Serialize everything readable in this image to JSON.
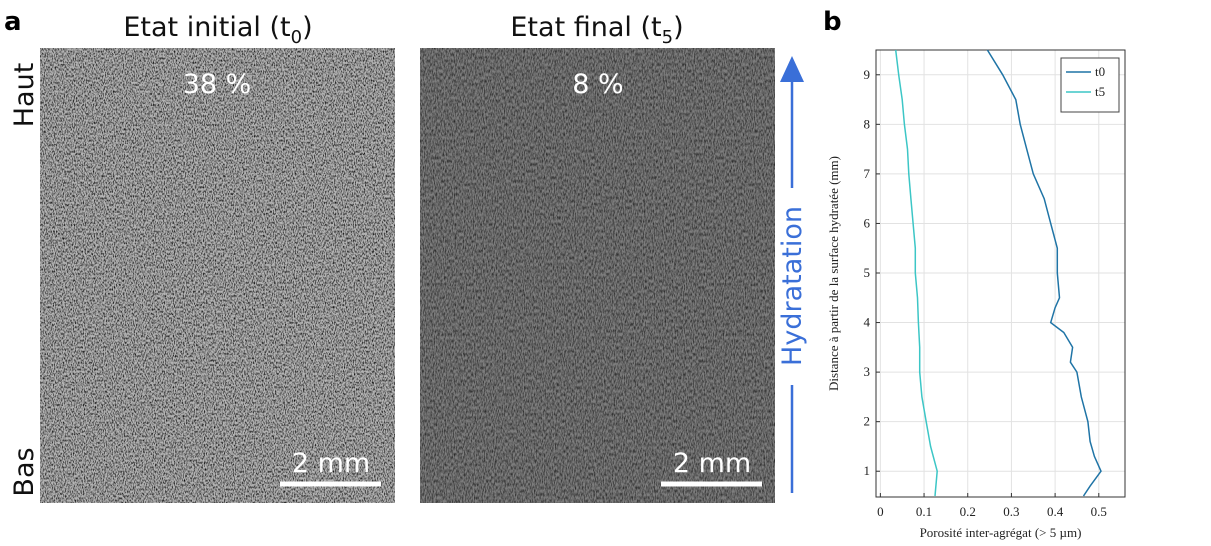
{
  "panel_a": {
    "label": "a",
    "images": [
      {
        "title": [
          "Etat initial (t",
          "0",
          ")"
        ],
        "value_label": "38 %",
        "scale": "2 mm"
      },
      {
        "title": [
          "Etat final (t",
          "5",
          ")"
        ],
        "value_label": "8 %",
        "scale": "2 mm"
      }
    ],
    "top_label": "Haut",
    "bottom_label": "Bas",
    "arrow_label": "Hydratation"
  },
  "chart_data": {
    "type": "line",
    "panel_label": "b",
    "xlabel": "Porosité inter-agrégat (> 5 µm)",
    "ylabel": "Distance à partir de la surface hydratée (mm)",
    "xlim": [
      -0.01,
      0.56
    ],
    "ylim": [
      0.48,
      9.5
    ],
    "xticks": [
      0,
      0.1,
      0.2,
      0.3,
      0.4,
      0.5
    ],
    "yticks": [
      1,
      2,
      3,
      4,
      5,
      6,
      7,
      8,
      9
    ],
    "grid": true,
    "legend": "top-right",
    "series": [
      {
        "name": "t0",
        "color": "#1f74a6",
        "x": [
          0.465,
          0.48,
          0.505,
          0.49,
          0.48,
          0.475,
          0.46,
          0.45,
          0.435,
          0.44,
          0.42,
          0.39,
          0.4,
          0.41,
          0.405,
          0.405,
          0.39,
          0.375,
          0.35,
          0.335,
          0.32,
          0.31,
          0.28,
          0.245
        ],
        "y": [
          0.5,
          0.7,
          1.0,
          1.3,
          1.6,
          2.0,
          2.5,
          3.0,
          3.2,
          3.5,
          3.8,
          4.0,
          4.3,
          4.5,
          5.0,
          5.5,
          6.0,
          6.5,
          7.0,
          7.5,
          8.0,
          8.5,
          9.0,
          9.5
        ]
      },
      {
        "name": "t5",
        "color": "#3cc6c6",
        "x": [
          0.125,
          0.13,
          0.115,
          0.105,
          0.095,
          0.09,
          0.09,
          0.087,
          0.085,
          0.08,
          0.08,
          0.075,
          0.07,
          0.065,
          0.062,
          0.055,
          0.05,
          0.042,
          0.035
        ],
        "y": [
          0.5,
          1.0,
          1.5,
          2.0,
          2.5,
          3.0,
          3.5,
          4.0,
          4.5,
          5.0,
          5.5,
          6.0,
          6.5,
          7.0,
          7.5,
          8.0,
          8.5,
          9.0,
          9.5
        ]
      }
    ]
  }
}
